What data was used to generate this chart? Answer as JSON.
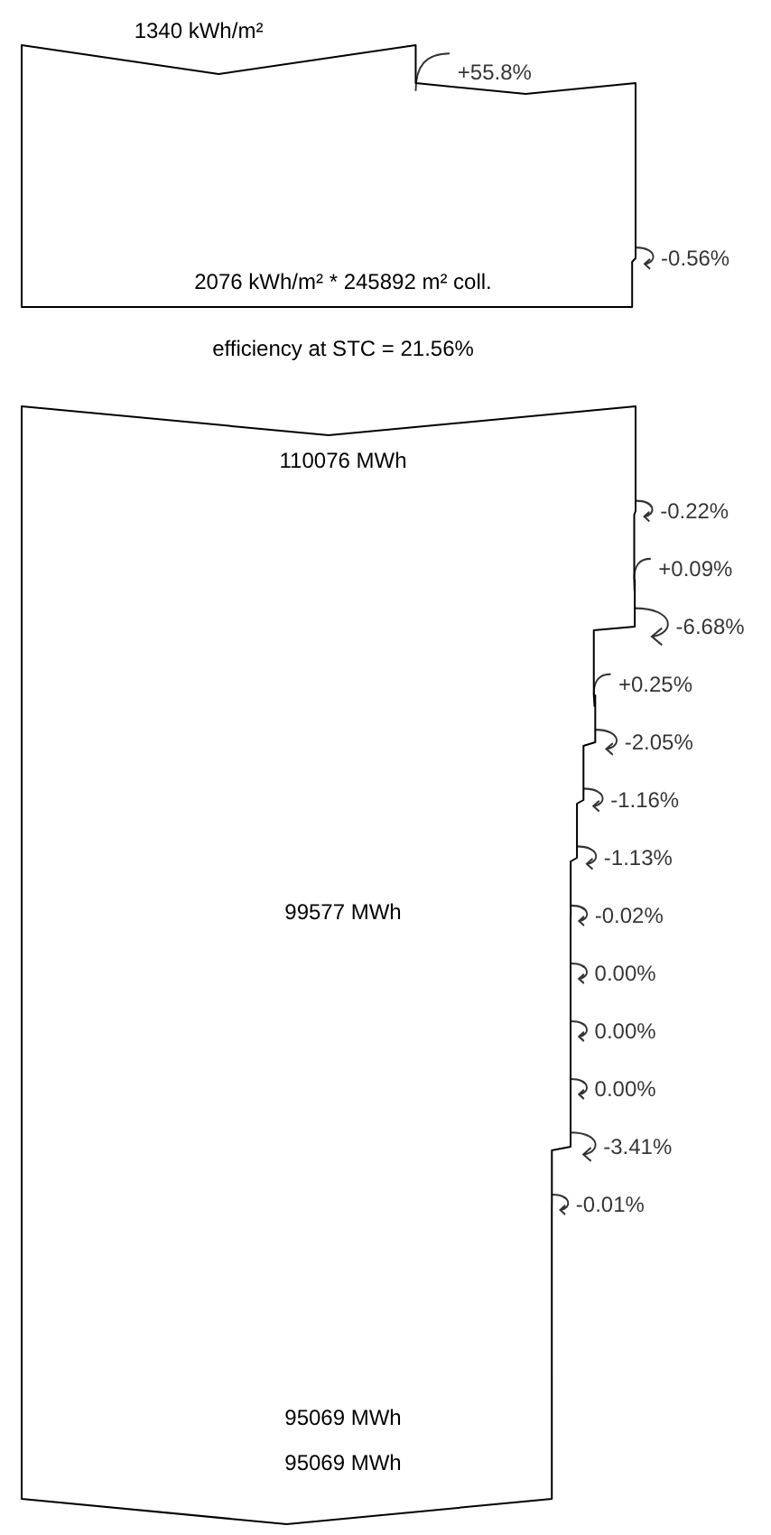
{
  "chart_data": [
    {
      "type": "other",
      "values": [
        55.8,
        -0.56
      ],
      "value_labels": [
        "+55.8%",
        "-0.56%"
      ],
      "data_labels": true,
      "annotations": [
        "1340 kWh/m²",
        "2076 kWh/m² * 245892 m² coll.",
        "efficiency at STC = 21.56%"
      ]
    },
    {
      "type": "other",
      "values": [
        -0.22,
        0.09,
        -6.68,
        0.25,
        -2.05,
        -1.16,
        -1.13,
        -0.02,
        0.0,
        0.0,
        0.0,
        -3.41,
        -0.01
      ],
      "value_labels": [
        "-0.22%",
        "+0.09%",
        "-6.68%",
        "+0.25%",
        "-2.05%",
        "-1.16%",
        "-1.13%",
        "-0.02%",
        "0.00%",
        "0.00%",
        "0.00%",
        "-3.41%",
        "-0.01%"
      ],
      "data_labels": true,
      "annotations": [
        "110076 MWh",
        "99577 MWh",
        "95069 MWh",
        "95069 MWh"
      ]
    }
  ]
}
